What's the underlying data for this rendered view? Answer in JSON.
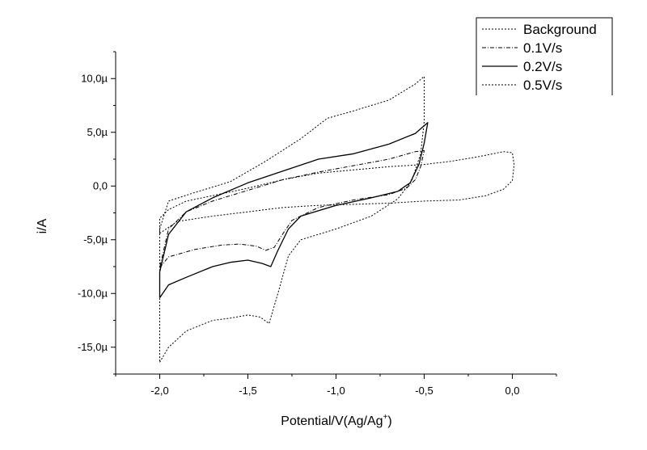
{
  "chart_data": {
    "type": "line",
    "title": "",
    "xlabel": "Potential/V(Ag/Ag",
    "xlabel_superscript": "+",
    "xlabel_suffix": ")",
    "ylabel": "i/A",
    "xlim": [
      -2.25,
      0.25
    ],
    "ylim": [
      -17.5,
      12.5
    ],
    "x_ticks": [
      -2.0,
      -1.5,
      -1.0,
      -0.5,
      0.0
    ],
    "x_tick_labels": [
      "-2,0",
      "-1,5",
      "-1,0",
      "-0,5",
      "0,0"
    ],
    "y_ticks": [
      -15,
      -10,
      -5,
      0,
      5,
      10
    ],
    "y_tick_labels": [
      "-15,0µ",
      "-10,0µ",
      "-5,0µ",
      "0,0",
      "5,0µ",
      "10,0µ"
    ],
    "y_unit": "µA",
    "grid": false,
    "legend_position": "top-right",
    "series": [
      {
        "name": "Background",
        "style": "dotted",
        "color": "#000000",
        "points": [
          [
            -2.0,
            -4.4
          ],
          [
            -1.9,
            -3.3
          ],
          [
            -1.7,
            -2.8
          ],
          [
            -1.5,
            -2.4
          ],
          [
            -1.3,
            -2.0
          ],
          [
            -1.1,
            -1.8
          ],
          [
            -0.9,
            -1.7
          ],
          [
            -0.7,
            -1.6
          ],
          [
            -0.5,
            -1.4
          ],
          [
            -0.3,
            -1.3
          ],
          [
            -0.15,
            -0.9
          ],
          [
            -0.05,
            -0.3
          ],
          [
            0.0,
            0.5
          ],
          [
            0.01,
            2.0
          ],
          [
            0.0,
            3.1
          ],
          [
            -0.05,
            3.2
          ],
          [
            -0.2,
            2.7
          ],
          [
            -0.35,
            2.3
          ],
          [
            -0.5,
            2.0
          ],
          [
            -0.7,
            1.8
          ],
          [
            -0.9,
            1.5
          ],
          [
            -1.1,
            1.2
          ],
          [
            -1.3,
            0.6
          ],
          [
            -1.5,
            -0.2
          ],
          [
            -1.7,
            -0.9
          ],
          [
            -1.85,
            -1.4
          ],
          [
            -1.95,
            -2.2
          ],
          [
            -2.0,
            -3.0
          ],
          [
            -2.0,
            -4.4
          ]
        ]
      },
      {
        "name": "0.1V/s",
        "style": "dash-dot",
        "color": "#000000",
        "points": [
          [
            -2.0,
            -7.6
          ],
          [
            -1.95,
            -6.6
          ],
          [
            -1.8,
            -5.9
          ],
          [
            -1.65,
            -5.5
          ],
          [
            -1.55,
            -5.4
          ],
          [
            -1.45,
            -5.6
          ],
          [
            -1.4,
            -6.0
          ],
          [
            -1.35,
            -5.7
          ],
          [
            -1.3,
            -4.4
          ],
          [
            -1.25,
            -3.2
          ],
          [
            -1.1,
            -2.0
          ],
          [
            -0.9,
            -1.3
          ],
          [
            -0.7,
            -0.8
          ],
          [
            -0.6,
            -0.2
          ],
          [
            -0.55,
            0.6
          ],
          [
            -0.52,
            1.8
          ],
          [
            -0.5,
            3.3
          ],
          [
            -0.55,
            3.2
          ],
          [
            -0.7,
            2.5
          ],
          [
            -0.9,
            1.9
          ],
          [
            -1.1,
            1.3
          ],
          [
            -1.3,
            0.6
          ],
          [
            -1.5,
            -0.4
          ],
          [
            -1.7,
            -1.4
          ],
          [
            -1.85,
            -2.4
          ],
          [
            -1.95,
            -4.0
          ],
          [
            -2.0,
            -7.6
          ]
        ]
      },
      {
        "name": "0.2V/s",
        "style": "solid",
        "color": "#000000",
        "points": [
          [
            -2.0,
            -10.4
          ],
          [
            -1.95,
            -9.2
          ],
          [
            -1.85,
            -8.5
          ],
          [
            -1.7,
            -7.5
          ],
          [
            -1.6,
            -7.1
          ],
          [
            -1.5,
            -6.9
          ],
          [
            -1.42,
            -7.2
          ],
          [
            -1.37,
            -7.5
          ],
          [
            -1.33,
            -6.0
          ],
          [
            -1.27,
            -4.0
          ],
          [
            -1.2,
            -2.8
          ],
          [
            -1.0,
            -1.8
          ],
          [
            -0.8,
            -1.1
          ],
          [
            -0.65,
            -0.5
          ],
          [
            -0.58,
            0.3
          ],
          [
            -0.53,
            2.0
          ],
          [
            -0.5,
            4.0
          ],
          [
            -0.48,
            5.9
          ],
          [
            -0.55,
            4.9
          ],
          [
            -0.7,
            3.9
          ],
          [
            -0.9,
            3.0
          ],
          [
            -1.1,
            2.5
          ],
          [
            -1.3,
            1.4
          ],
          [
            -1.5,
            0.3
          ],
          [
            -1.7,
            -1.1
          ],
          [
            -1.85,
            -2.4
          ],
          [
            -1.95,
            -4.5
          ],
          [
            -2.0,
            -8.0
          ],
          [
            -2.0,
            -10.4
          ]
        ]
      },
      {
        "name": "0.5V/s",
        "style": "dotted",
        "color": "#000000",
        "points": [
          [
            -2.0,
            -16.4
          ],
          [
            -1.95,
            -15.0
          ],
          [
            -1.85,
            -13.5
          ],
          [
            -1.7,
            -12.5
          ],
          [
            -1.6,
            -12.3
          ],
          [
            -1.5,
            -12.0
          ],
          [
            -1.43,
            -12.2
          ],
          [
            -1.38,
            -12.8
          ],
          [
            -1.33,
            -10.0
          ],
          [
            -1.27,
            -6.5
          ],
          [
            -1.2,
            -5.0
          ],
          [
            -1.0,
            -4.0
          ],
          [
            -0.8,
            -2.8
          ],
          [
            -0.65,
            -1.2
          ],
          [
            -0.57,
            0.5
          ],
          [
            -0.52,
            3.0
          ],
          [
            -0.5,
            6.0
          ],
          [
            -0.5,
            10.2
          ],
          [
            -0.55,
            9.5
          ],
          [
            -0.7,
            8.0
          ],
          [
            -0.9,
            7.0
          ],
          [
            -1.05,
            6.3
          ],
          [
            -1.2,
            4.4
          ],
          [
            -1.4,
            2.3
          ],
          [
            -1.6,
            0.4
          ],
          [
            -1.8,
            -0.6
          ],
          [
            -1.95,
            -1.4
          ],
          [
            -2.0,
            -4.0
          ],
          [
            -2.0,
            -10.0
          ],
          [
            -2.0,
            -16.4
          ]
        ]
      }
    ]
  }
}
